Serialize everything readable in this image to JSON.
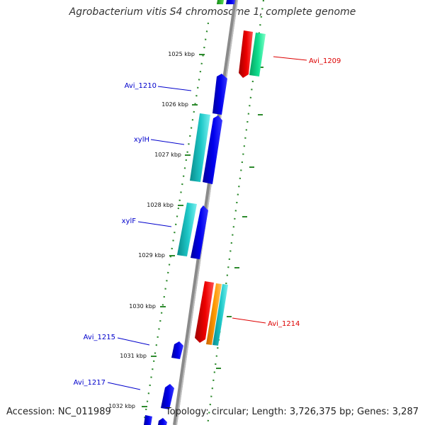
{
  "title": "Agrobacterium vitis S4 chromosome 1, complete genome",
  "accession": "Accession: NC_011989",
  "topology": "Topology: circular; Length: 3,726,375 bp; Genes: 3,287",
  "colors": {
    "backbone": "#808080",
    "ticks": "#2e8b2e",
    "forward_label": "#0000cc",
    "reverse_label": "#dd0000",
    "blue": "#0000ee",
    "cyan": "#1ec8c8",
    "red": "#ee0000",
    "teal_green": "#10e090",
    "orange": "#ff9900"
  },
  "ticks": [
    {
      "label": "1025 kbp"
    },
    {
      "label": "1026 kbp"
    },
    {
      "label": "1027 kbp"
    },
    {
      "label": "1028 kbp"
    },
    {
      "label": "1029 kbp"
    },
    {
      "label": "1030 kbp"
    },
    {
      "label": "1031 kbp"
    },
    {
      "label": "1032 kbp"
    }
  ],
  "gene_labels": [
    {
      "text": "Avi_1209",
      "strand": "reverse"
    },
    {
      "text": "Avi_1210",
      "strand": "forward"
    },
    {
      "text": "xylH",
      "strand": "forward"
    },
    {
      "text": "xylF",
      "strand": "forward"
    },
    {
      "text": "Avi_1214",
      "strand": "reverse"
    },
    {
      "text": "Avi_1215",
      "strand": "forward"
    },
    {
      "text": "Avi_1217",
      "strand": "forward"
    }
  ]
}
